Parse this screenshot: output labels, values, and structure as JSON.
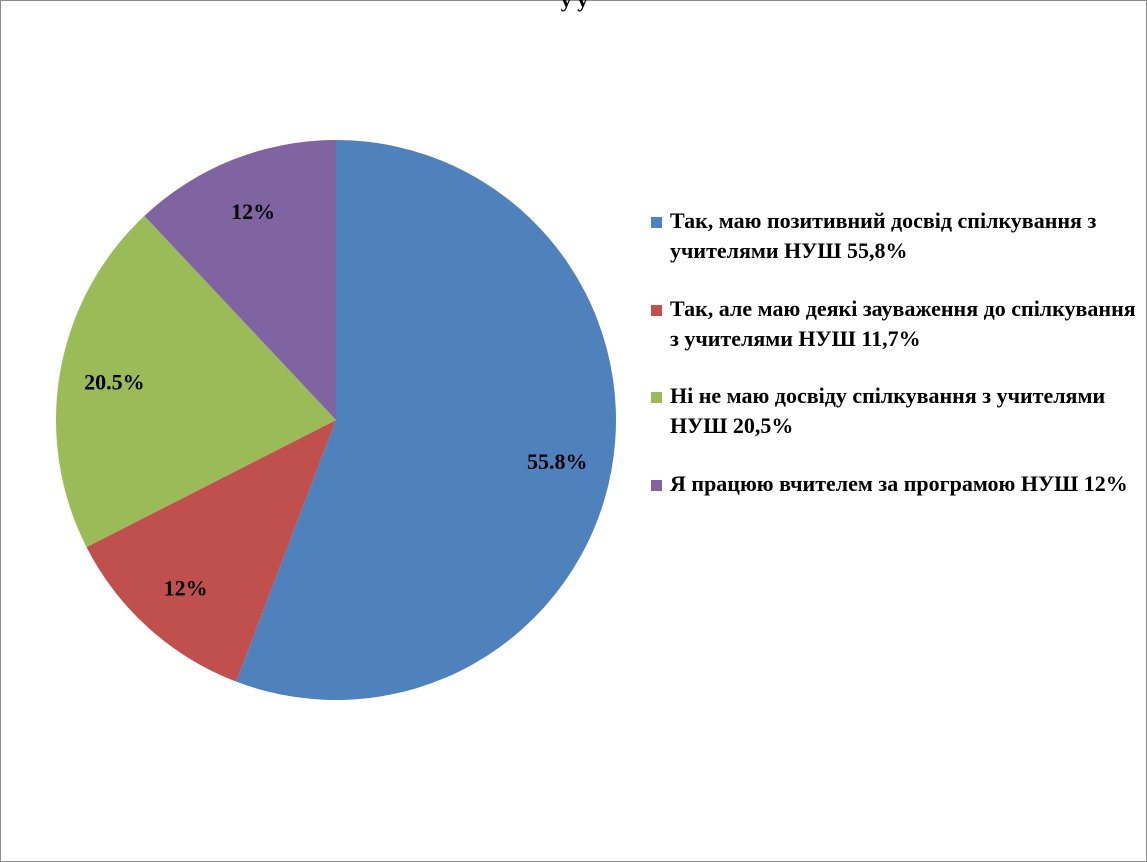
{
  "chart_data": {
    "type": "pie",
    "title": "",
    "clipped_title_fragment": "у        у",
    "slices": [
      {
        "legend": "Так, маю позитивний досвід спілкування з учителями НУШ 55,8%",
        "label": "55.8%",
        "value": 55.8,
        "color": "#4F81BD"
      },
      {
        "legend": "Так, але маю деякі зауваження до спілкування з учителями НУШ 11,7%",
        "label": "12%",
        "value": 11.7,
        "color": "#C0504D"
      },
      {
        "legend": "Ні не маю досвіду спілкування з учителями НУШ 20,5%",
        "label": "20.5%",
        "value": 20.5,
        "color": "#9BBB59"
      },
      {
        "legend": "Я працюю вчителем за програмою НУШ 12%",
        "label": "12%",
        "value": 12,
        "color": "#8064A2"
      }
    ],
    "legend_position": "right"
  }
}
